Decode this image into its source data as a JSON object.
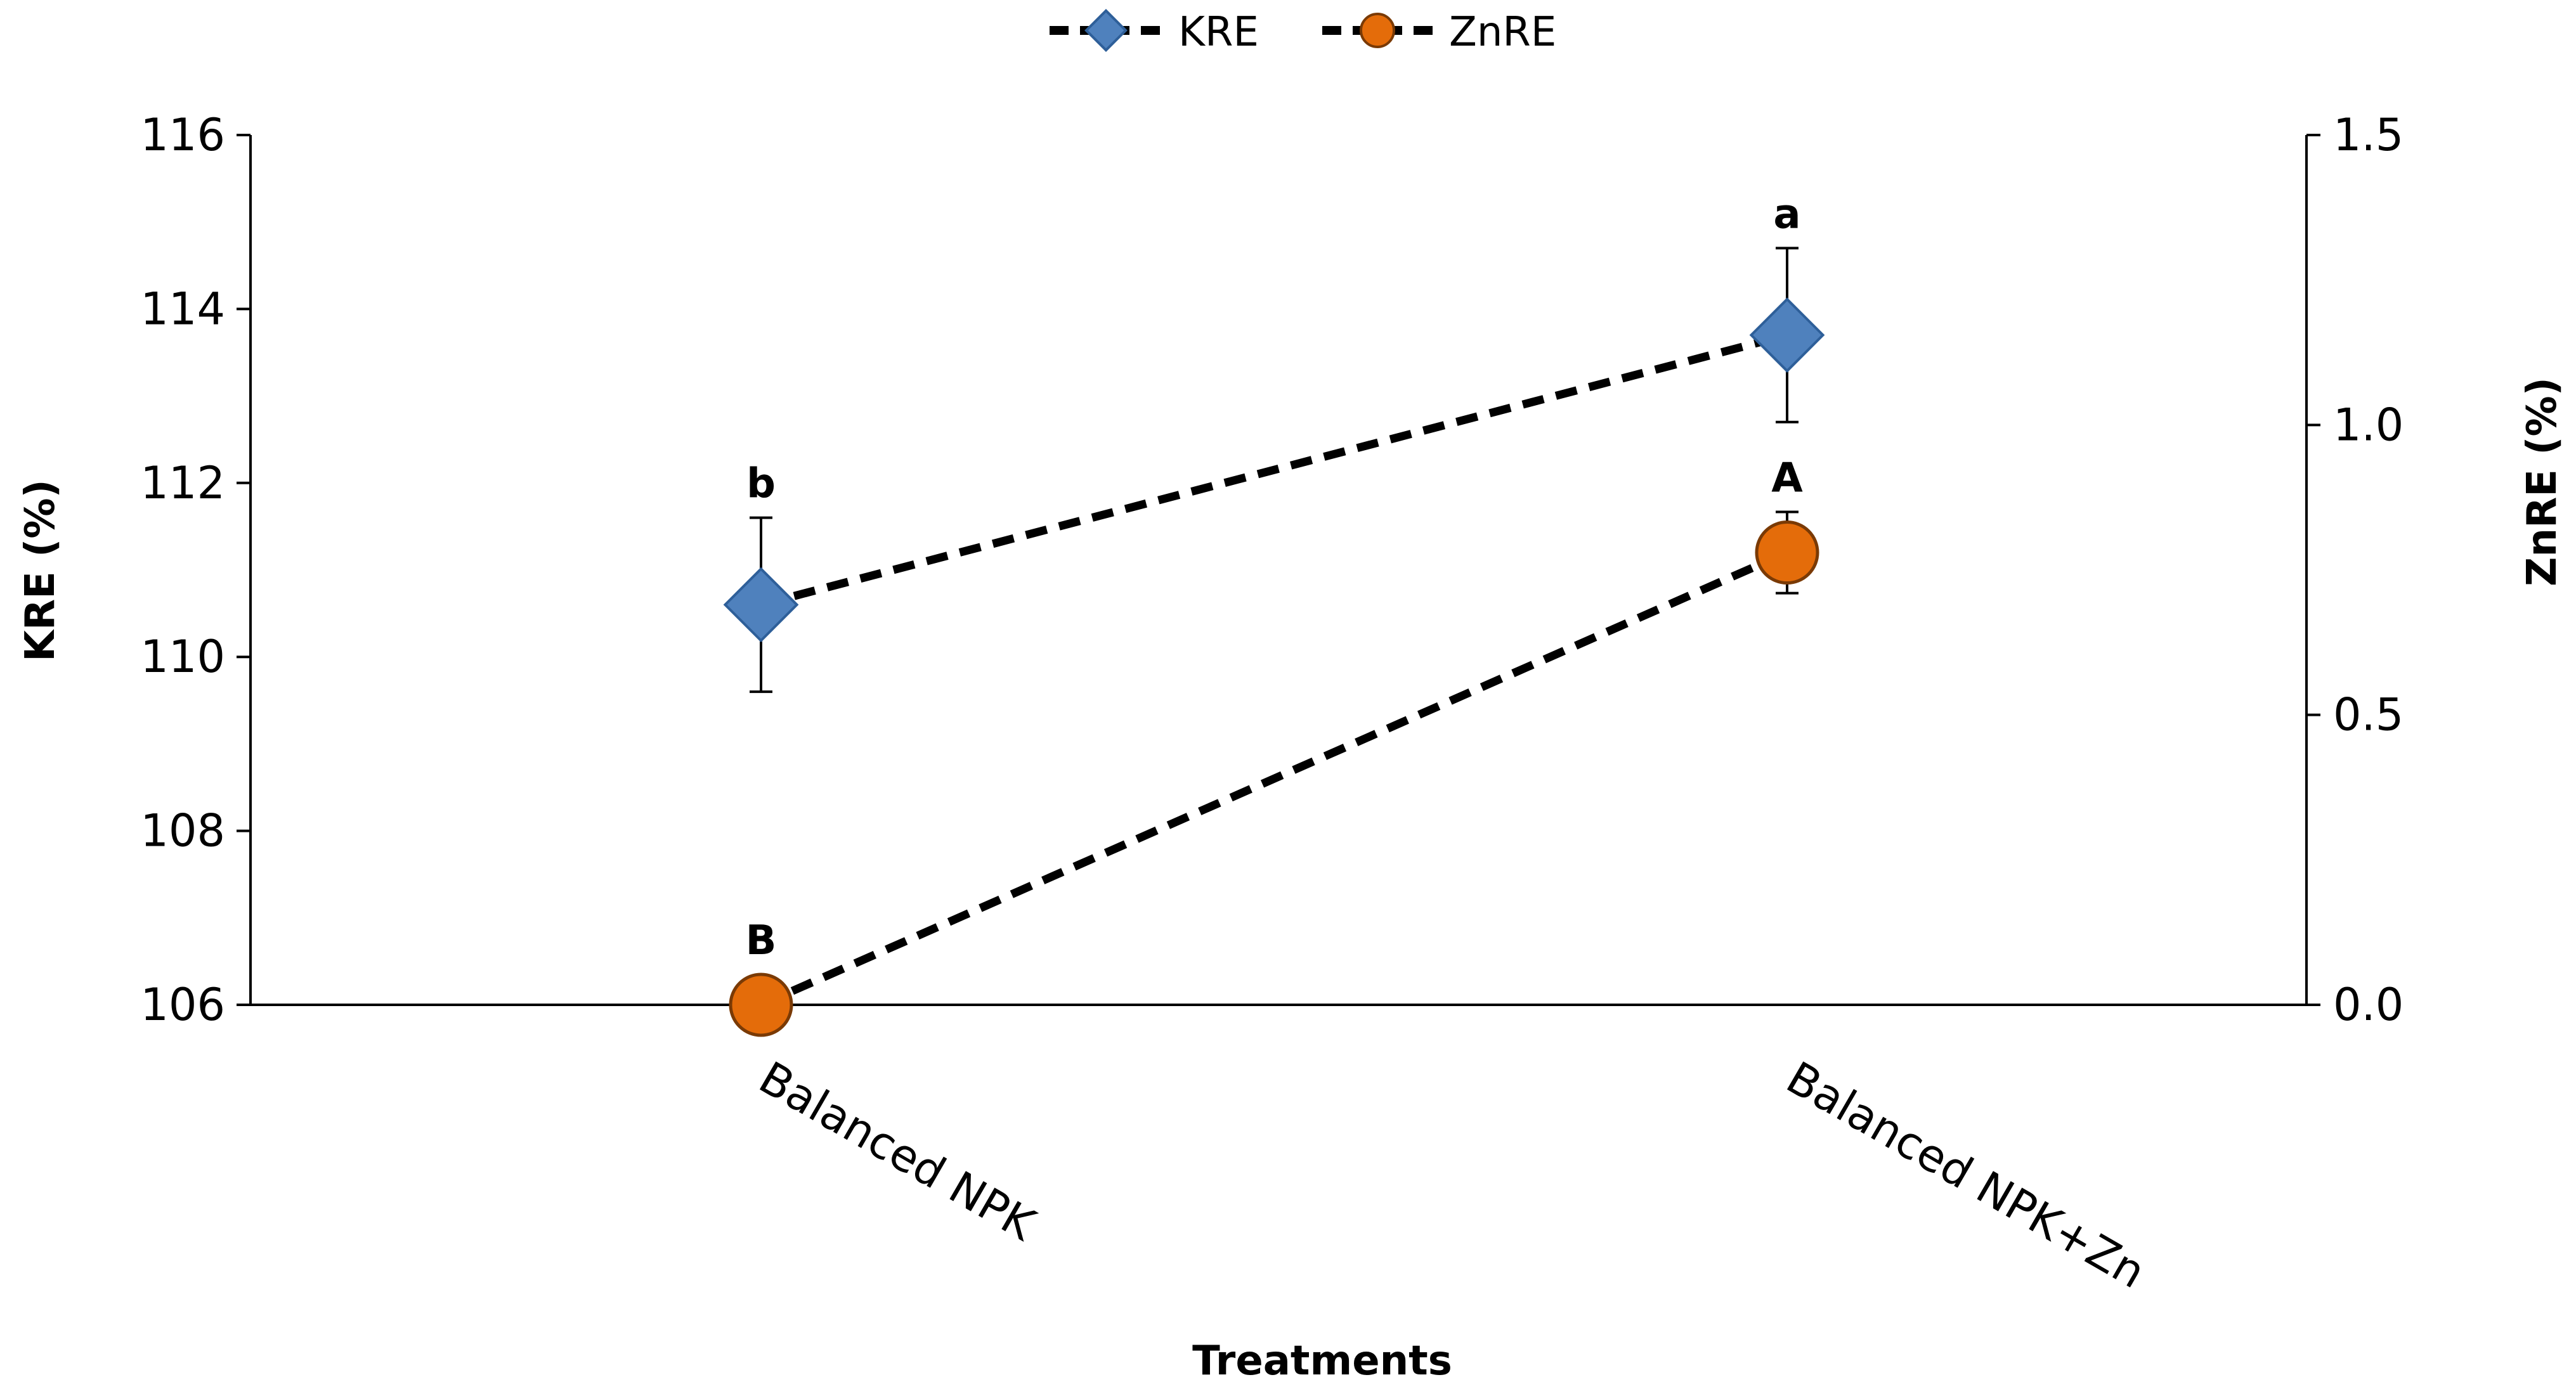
{
  "chart_data": {
    "type": "line",
    "title": "",
    "xlabel": "Treatments",
    "ylabel": "KRE (%)",
    "y2label": "ZnRE (%)",
    "categories": [
      "Balanced NPK",
      "Balanced NPK+Zn"
    ],
    "ylim": [
      106,
      116
    ],
    "y2lim": [
      0.0,
      1.5
    ],
    "yticks": [
      "106",
      "108",
      "110",
      "112",
      "114",
      "116"
    ],
    "y2ticks": [
      "0.0",
      "0.5",
      "1.0",
      "1.5"
    ],
    "grid": false,
    "legend_position": "top-center",
    "series": [
      {
        "name": "KRE",
        "axis": "left",
        "marker": "diamond",
        "line_style": "dashed",
        "color": "#4F81BD",
        "values": [
          110.6,
          113.7
        ],
        "error": [
          1.0,
          1.0
        ],
        "letters": [
          "b",
          "a"
        ]
      },
      {
        "name": "ZnRE",
        "axis": "right",
        "marker": "circle",
        "line_style": "dashed",
        "color": "#E46C0A",
        "values": [
          0.0,
          0.78
        ],
        "error": [
          0.0,
          0.07
        ],
        "letters": [
          "B",
          "A"
        ]
      }
    ]
  }
}
